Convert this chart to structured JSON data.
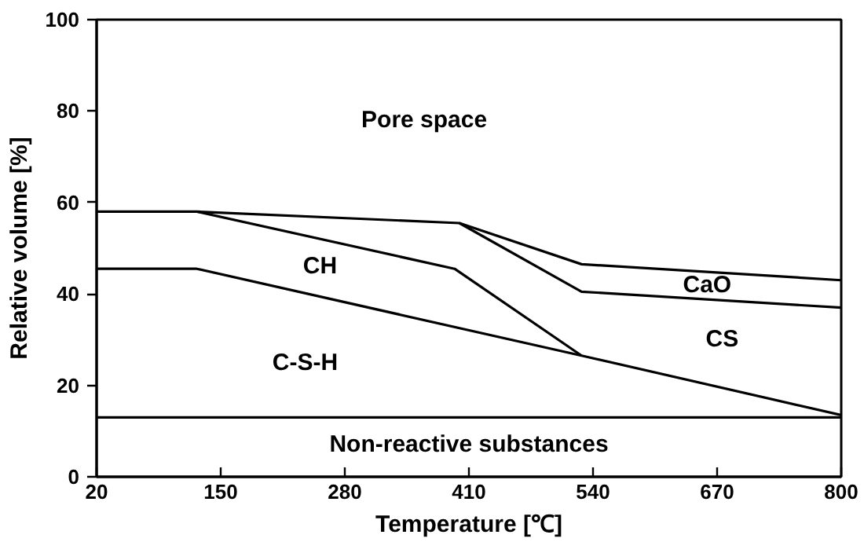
{
  "chart_data": {
    "type": "line",
    "xlabel": "Temperature [℃]",
    "ylabel": "Relative volume [%]",
    "xlim": [
      20,
      800
    ],
    "xticks": [
      20,
      150,
      280,
      410,
      540,
      670,
      800
    ],
    "ylim": [
      0,
      100
    ],
    "yticks": [
      0,
      20,
      40,
      60,
      80,
      100
    ],
    "grid": false,
    "marker": "none",
    "line_style": "solid",
    "series": [
      {
        "color": "#000000",
        "x": [
          20,
          125,
          400,
          528,
          800
        ],
        "values": [
          58,
          58,
          55.5,
          46.5,
          43
        ]
      },
      {
        "color": "#000000",
        "x": [
          400,
          528,
          800
        ],
        "values": [
          55.5,
          40.5,
          37
        ]
      },
      {
        "color": "#000000",
        "x": [
          125,
          395,
          528
        ],
        "values": [
          58,
          45.5,
          26.5
        ]
      },
      {
        "color": "#000000",
        "x": [
          20,
          125,
          528,
          800
        ],
        "values": [
          45.5,
          45.5,
          26.5,
          13.5
        ]
      },
      {
        "color": "#000000",
        "x": [
          20,
          800
        ],
        "values": [
          13,
          13
        ]
      }
    ],
    "annotations": [
      "Pore space",
      "CH",
      "C-S-H",
      "Non-reactive substances",
      "CaO",
      "CS"
    ]
  }
}
